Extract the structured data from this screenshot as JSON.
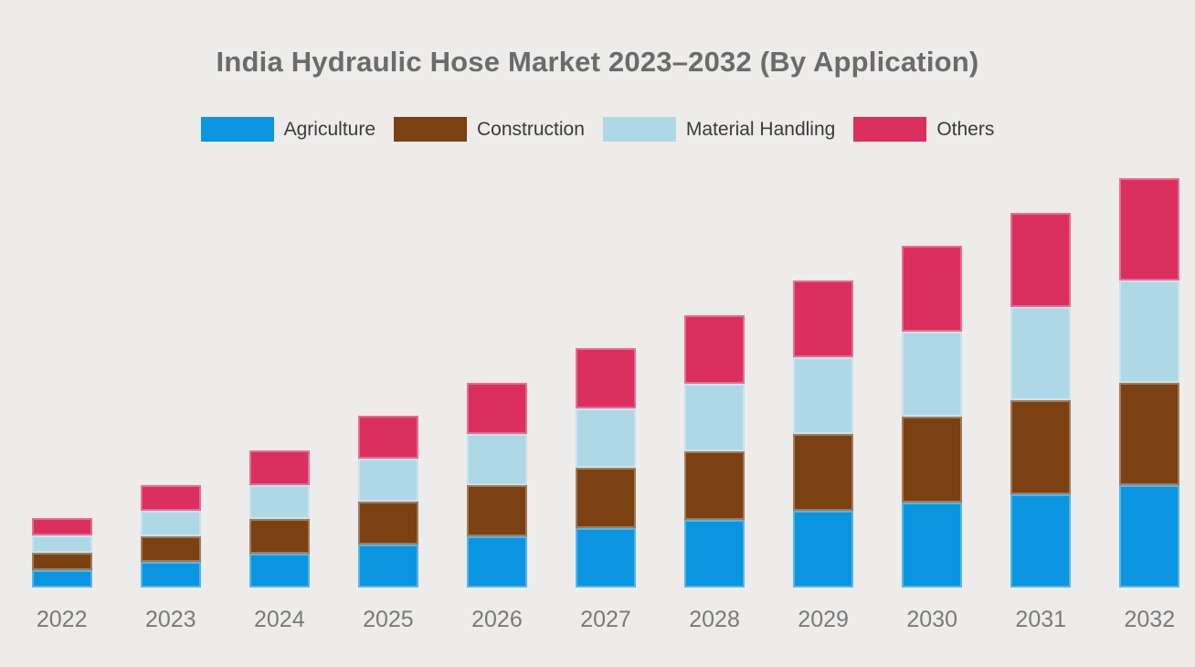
{
  "page": {
    "background_color": "#edecea"
  },
  "title": {
    "text": "India Hydraulic Hose Market 2023–2032 (By Application)",
    "color": "#6b6b6b"
  },
  "legend": {
    "position": "top-center",
    "items": [
      {
        "label": "Agriculture",
        "color": "#0b95e0"
      },
      {
        "label": "Construction",
        "color": "#7b4112"
      },
      {
        "label": "Material Handling",
        "color": "#aed8e6"
      },
      {
        "label": "Others",
        "color": "#db2f5f"
      }
    ]
  },
  "chart_data": {
    "type": "bar",
    "stacked": true,
    "title": "India Hydraulic Hose Market 2023–2032 (By Application)",
    "categories": [
      "2022",
      "2023",
      "2024",
      "2025",
      "2026",
      "2027",
      "2028",
      "2029",
      "2030",
      "2031",
      "2032"
    ],
    "series": [
      {
        "name": "Agriculture",
        "color": "#0b95e0",
        "values": [
          19,
          28,
          37.5,
          47,
          56,
          65.5,
          74.5,
          84,
          93.5,
          102.5,
          112
        ]
      },
      {
        "name": "Construction",
        "color": "#7b4112",
        "values": [
          19,
          28,
          37.5,
          47,
          56,
          65.5,
          74.5,
          84,
          93.5,
          102.5,
          112
        ]
      },
      {
        "name": "Material Handling",
        "color": "#aed8e6",
        "values": [
          19,
          28,
          37.5,
          47,
          56,
          65.5,
          74.5,
          84,
          93.5,
          102.5,
          112
        ]
      },
      {
        "name": "Others",
        "color": "#db2f5f",
        "values": [
          19,
          28,
          37.5,
          47,
          56,
          65.5,
          74.5,
          84,
          93.5,
          102.5,
          112
        ]
      }
    ],
    "stack_totals": [
      76,
      112,
      150,
      188,
      224,
      262,
      298,
      336,
      374,
      410,
      448
    ],
    "units": "relative index (no value axis shown in chart)",
    "xlabel": "",
    "ylabel": "",
    "y_axis_visible": false,
    "x_axis_visible": true,
    "grid": false,
    "legend_position": "top",
    "x_tick_color": "#7a7a7a"
  }
}
